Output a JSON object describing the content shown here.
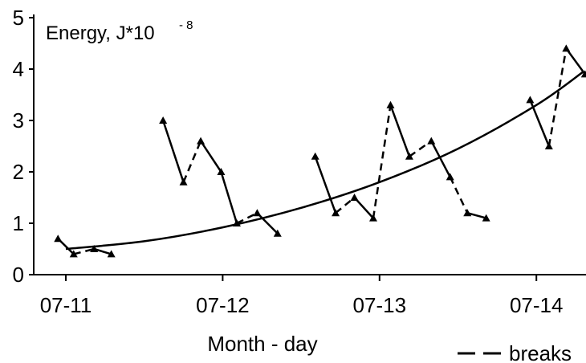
{
  "chart_data": {
    "type": "line",
    "ylabel": "Energy, J*10",
    "ylabel_exponent": "- 8",
    "xlabel": "Month - day",
    "legend_text": "breaks",
    "x_ticks": [
      "07-11",
      "07-12",
      "07-13",
      "07-14"
    ],
    "y_ticks": [
      "0",
      "1",
      "2",
      "3",
      "4",
      "5"
    ],
    "ylim": [
      0,
      5
    ],
    "xlim": [
      -0.1,
      3.35
    ],
    "colors": {
      "line": "#000000",
      "marker": "#000000"
    },
    "segments": [
      {
        "style": "solid",
        "points": [
          [
            -0.05,
            0.7
          ],
          [
            0.05,
            0.4
          ]
        ]
      },
      {
        "style": "dashed",
        "points": [
          [
            0.05,
            0.4
          ],
          [
            0.18,
            0.5
          ]
        ]
      },
      {
        "style": "solid",
        "points": [
          [
            0.18,
            0.5
          ],
          [
            0.29,
            0.4
          ]
        ]
      },
      {
        "style": "solid",
        "points": [
          [
            0.62,
            3.0
          ],
          [
            0.75,
            1.8
          ]
        ]
      },
      {
        "style": "dashed",
        "points": [
          [
            0.75,
            1.8
          ],
          [
            0.86,
            2.6
          ]
        ]
      },
      {
        "style": "solid",
        "points": [
          [
            0.86,
            2.6
          ],
          [
            0.99,
            2.0
          ]
        ]
      },
      {
        "style": "solid",
        "points": [
          [
            0.99,
            2.0
          ],
          [
            1.09,
            1.0
          ]
        ]
      },
      {
        "style": "dashed",
        "points": [
          [
            1.09,
            1.0
          ],
          [
            1.22,
            1.2
          ]
        ]
      },
      {
        "style": "solid",
        "points": [
          [
            1.22,
            1.2
          ],
          [
            1.35,
            0.8
          ]
        ]
      },
      {
        "style": "solid",
        "points": [
          [
            1.59,
            2.3
          ],
          [
            1.72,
            1.2
          ]
        ]
      },
      {
        "style": "dashed",
        "points": [
          [
            1.72,
            1.2
          ],
          [
            1.84,
            1.5
          ]
        ]
      },
      {
        "style": "solid",
        "points": [
          [
            1.84,
            1.5
          ],
          [
            1.96,
            1.1
          ]
        ]
      },
      {
        "style": "dashed",
        "points": [
          [
            1.96,
            1.1
          ],
          [
            2.07,
            3.3
          ]
        ]
      },
      {
        "style": "solid",
        "points": [
          [
            2.07,
            3.3
          ],
          [
            2.19,
            2.3
          ]
        ]
      },
      {
        "style": "dashed",
        "points": [
          [
            2.19,
            2.3
          ],
          [
            2.33,
            2.6
          ]
        ]
      },
      {
        "style": "solid",
        "points": [
          [
            2.33,
            2.6
          ],
          [
            2.45,
            1.9
          ]
        ]
      },
      {
        "style": "dashed",
        "points": [
          [
            2.45,
            1.9
          ],
          [
            2.56,
            1.2
          ]
        ]
      },
      {
        "style": "solid",
        "points": [
          [
            2.56,
            1.2
          ],
          [
            2.68,
            1.1
          ]
        ]
      },
      {
        "style": "solid",
        "points": [
          [
            2.96,
            3.4
          ],
          [
            3.08,
            2.5
          ]
        ]
      },
      {
        "style": "dashed",
        "points": [
          [
            3.08,
            2.5
          ],
          [
            3.19,
            4.4
          ]
        ]
      },
      {
        "style": "solid",
        "points": [
          [
            3.19,
            4.4
          ],
          [
            3.31,
            3.9
          ]
        ]
      }
    ],
    "trend": {
      "style": "solid",
      "points": [
        [
          0.0,
          0.5
        ],
        [
          0.5,
          0.65
        ],
        [
          1.0,
          0.92
        ],
        [
          1.5,
          1.3
        ],
        [
          2.0,
          1.8
        ],
        [
          2.5,
          2.45
        ],
        [
          3.0,
          3.3
        ],
        [
          3.3,
          3.95
        ]
      ]
    }
  }
}
